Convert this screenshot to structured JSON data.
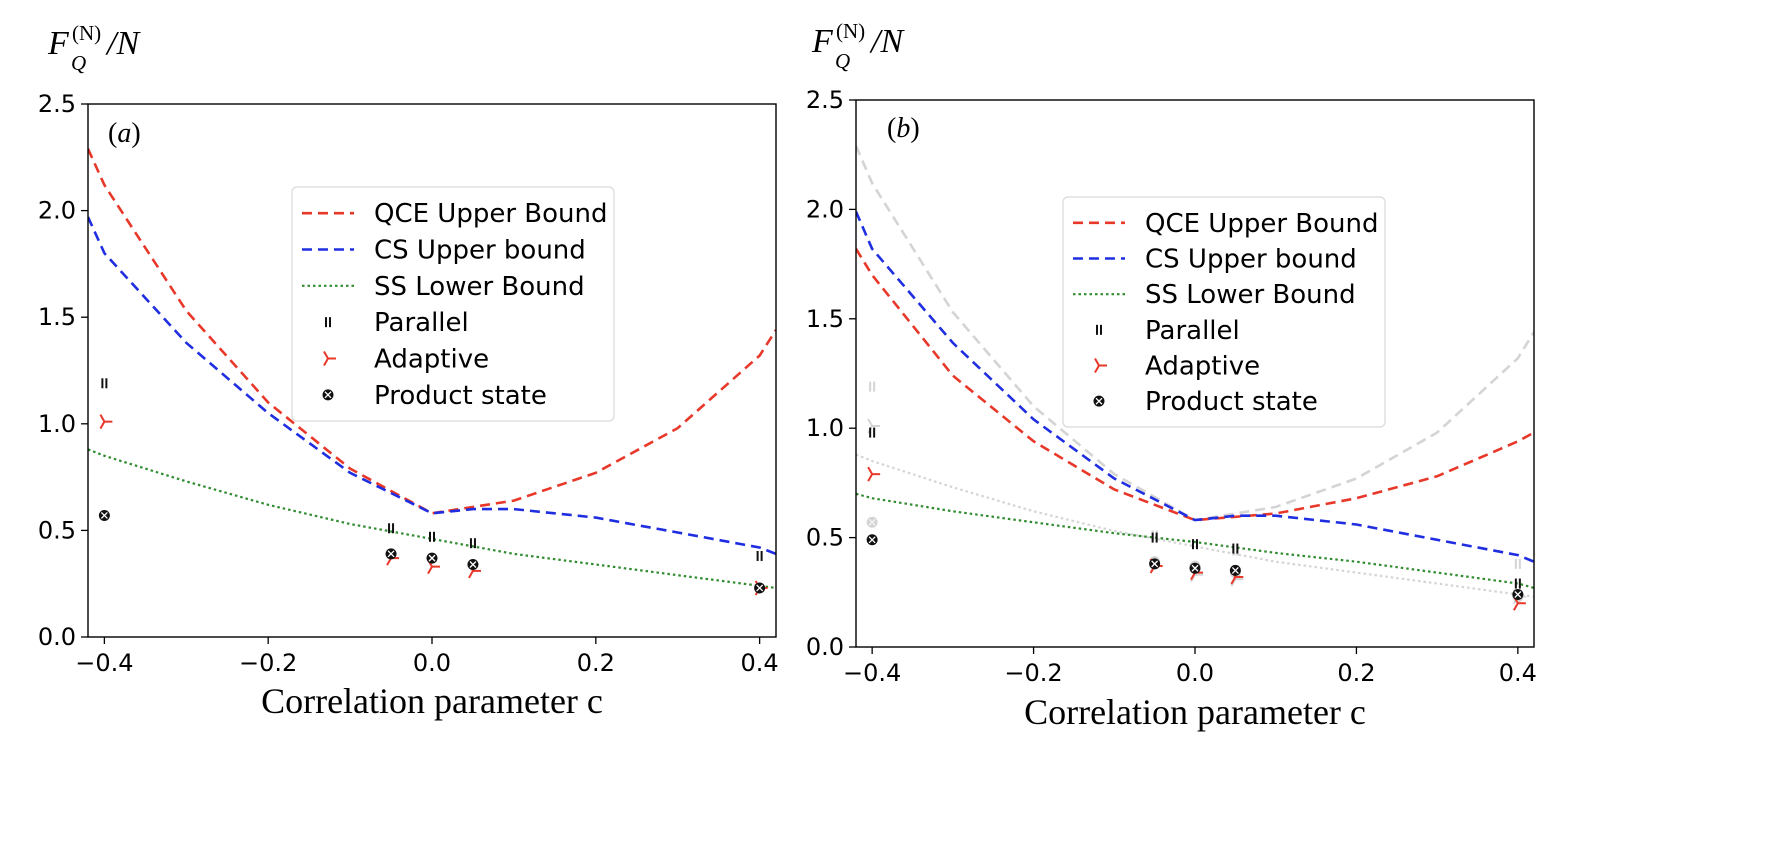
{
  "figure": {
    "ylabel": {
      "main": "F",
      "sub": "Q",
      "sup": "(N)",
      "tail": "/N"
    },
    "xlabel": "Correlation parameter c",
    "legend_entries": [
      {
        "label": "QCE Upper Bound",
        "kind": "qce"
      },
      {
        "label": " CS Upper bound",
        "kind": "cs"
      },
      {
        "label": "SS Lower Bound",
        "kind": "ss"
      },
      {
        "label": "Parallel",
        "kind": "parallel"
      },
      {
        "label": "Adaptive",
        "kind": "adaptive"
      },
      {
        "label": "Product state",
        "kind": "product"
      }
    ],
    "colors": {
      "qce": "#e8382a",
      "cs": "#1f2ee0",
      "ss": "#2e8b2e",
      "parallel": "#111111",
      "adaptive": "#e8382a",
      "product": "#111111",
      "ghost": "#d4d4d4"
    }
  },
  "chart_data": [
    {
      "type": "line",
      "panel": "(a)",
      "xlabel": "Correlation parameter c",
      "ylabel": "F_Q^(N)/N",
      "xlim": [
        -0.42,
        0.42
      ],
      "ylim": [
        0,
        2.5
      ],
      "xticks": [
        "-0.4",
        "-0.2",
        "0.0",
        "0.2",
        "0.4"
      ],
      "yticks": [
        "0.0",
        "0.5",
        "1.0",
        "1.5",
        "2.0",
        "2.5"
      ],
      "legend_position": "upper-center",
      "series": [
        {
          "name": "QCE Upper Bound",
          "kind": "qce",
          "x": [
            -0.42,
            -0.4,
            -0.3,
            -0.2,
            -0.1,
            0.0,
            0.1,
            0.2,
            0.3,
            0.4,
            0.42
          ],
          "y": [
            2.29,
            2.12,
            1.53,
            1.1,
            0.79,
            0.58,
            0.64,
            0.77,
            0.98,
            1.32,
            1.44
          ]
        },
        {
          "name": "CS Upper bound",
          "kind": "cs",
          "x": [
            -0.42,
            -0.4,
            -0.3,
            -0.2,
            -0.1,
            0.0,
            0.05,
            0.1,
            0.2,
            0.3,
            0.4,
            0.42
          ],
          "y": [
            1.97,
            1.8,
            1.38,
            1.05,
            0.77,
            0.58,
            0.6,
            0.6,
            0.56,
            0.49,
            0.42,
            0.39
          ]
        },
        {
          "name": "SS Lower Bound",
          "kind": "ss",
          "x": [
            -0.42,
            -0.4,
            -0.3,
            -0.2,
            -0.1,
            0.0,
            0.1,
            0.2,
            0.3,
            0.4,
            0.42
          ],
          "y": [
            0.88,
            0.85,
            0.73,
            0.62,
            0.53,
            0.46,
            0.39,
            0.34,
            0.29,
            0.24,
            0.23
          ]
        }
      ],
      "scatter": [
        {
          "name": "Parallel",
          "kind": "parallel",
          "x": [
            -0.4,
            -0.05,
            0.0,
            0.05,
            0.4
          ],
          "y": [
            1.19,
            0.51,
            0.47,
            0.44,
            0.38
          ]
        },
        {
          "name": "Adaptive",
          "kind": "adaptive",
          "x": [
            -0.4,
            -0.05,
            0.0,
            0.05,
            0.4
          ],
          "y": [
            1.01,
            0.37,
            0.33,
            0.31,
            0.23
          ]
        },
        {
          "name": "Product state",
          "kind": "product",
          "x": [
            -0.4,
            -0.05,
            0.0,
            0.05,
            0.4
          ],
          "y": [
            0.57,
            0.39,
            0.37,
            0.34,
            0.23
          ]
        }
      ]
    },
    {
      "type": "line",
      "panel": "(b)",
      "xlabel": "Correlation parameter c",
      "ylabel": "F_Q^(N)/N",
      "xlim": [
        -0.42,
        0.42
      ],
      "ylim": [
        0,
        2.5
      ],
      "xticks": [
        "-0.4",
        "-0.2",
        "0.0",
        "0.2",
        "0.4"
      ],
      "yticks": [
        "0.0",
        "0.5",
        "1.0",
        "1.5",
        "2.0",
        "2.5"
      ],
      "legend_position": "upper-center",
      "ghost_of_panel": "(a)",
      "series": [
        {
          "name": "QCE Upper Bound",
          "kind": "qce",
          "x": [
            -0.42,
            -0.4,
            -0.3,
            -0.2,
            -0.1,
            0.0,
            0.1,
            0.2,
            0.3,
            0.4,
            0.42
          ],
          "y": [
            1.82,
            1.7,
            1.24,
            0.94,
            0.72,
            0.58,
            0.61,
            0.68,
            0.78,
            0.94,
            0.98
          ]
        },
        {
          "name": "CS Upper bound",
          "kind": "cs",
          "x": [
            -0.42,
            -0.4,
            -0.3,
            -0.2,
            -0.1,
            0.0,
            0.05,
            0.1,
            0.2,
            0.3,
            0.4,
            0.42
          ],
          "y": [
            1.99,
            1.82,
            1.39,
            1.04,
            0.77,
            0.58,
            0.6,
            0.6,
            0.56,
            0.49,
            0.42,
            0.39
          ]
        },
        {
          "name": "SS Lower Bound",
          "kind": "ss",
          "x": [
            -0.42,
            -0.4,
            -0.3,
            -0.2,
            -0.1,
            0.0,
            0.1,
            0.2,
            0.3,
            0.4,
            0.42
          ],
          "y": [
            0.7,
            0.68,
            0.62,
            0.57,
            0.52,
            0.48,
            0.43,
            0.39,
            0.34,
            0.29,
            0.27
          ]
        }
      ],
      "scatter": [
        {
          "name": "Parallel",
          "kind": "parallel",
          "x": [
            -0.4,
            -0.05,
            0.0,
            0.05,
            0.4
          ],
          "y": [
            0.98,
            0.5,
            0.47,
            0.45,
            0.29
          ]
        },
        {
          "name": "Adaptive",
          "kind": "adaptive",
          "x": [
            -0.4,
            -0.05,
            0.0,
            0.05,
            0.4
          ],
          "y": [
            0.79,
            0.37,
            0.34,
            0.32,
            0.2
          ]
        },
        {
          "name": "Product state",
          "kind": "product",
          "x": [
            -0.4,
            -0.05,
            0.0,
            0.05,
            0.4
          ],
          "y": [
            0.49,
            0.38,
            0.36,
            0.35,
            0.24
          ]
        }
      ]
    }
  ]
}
